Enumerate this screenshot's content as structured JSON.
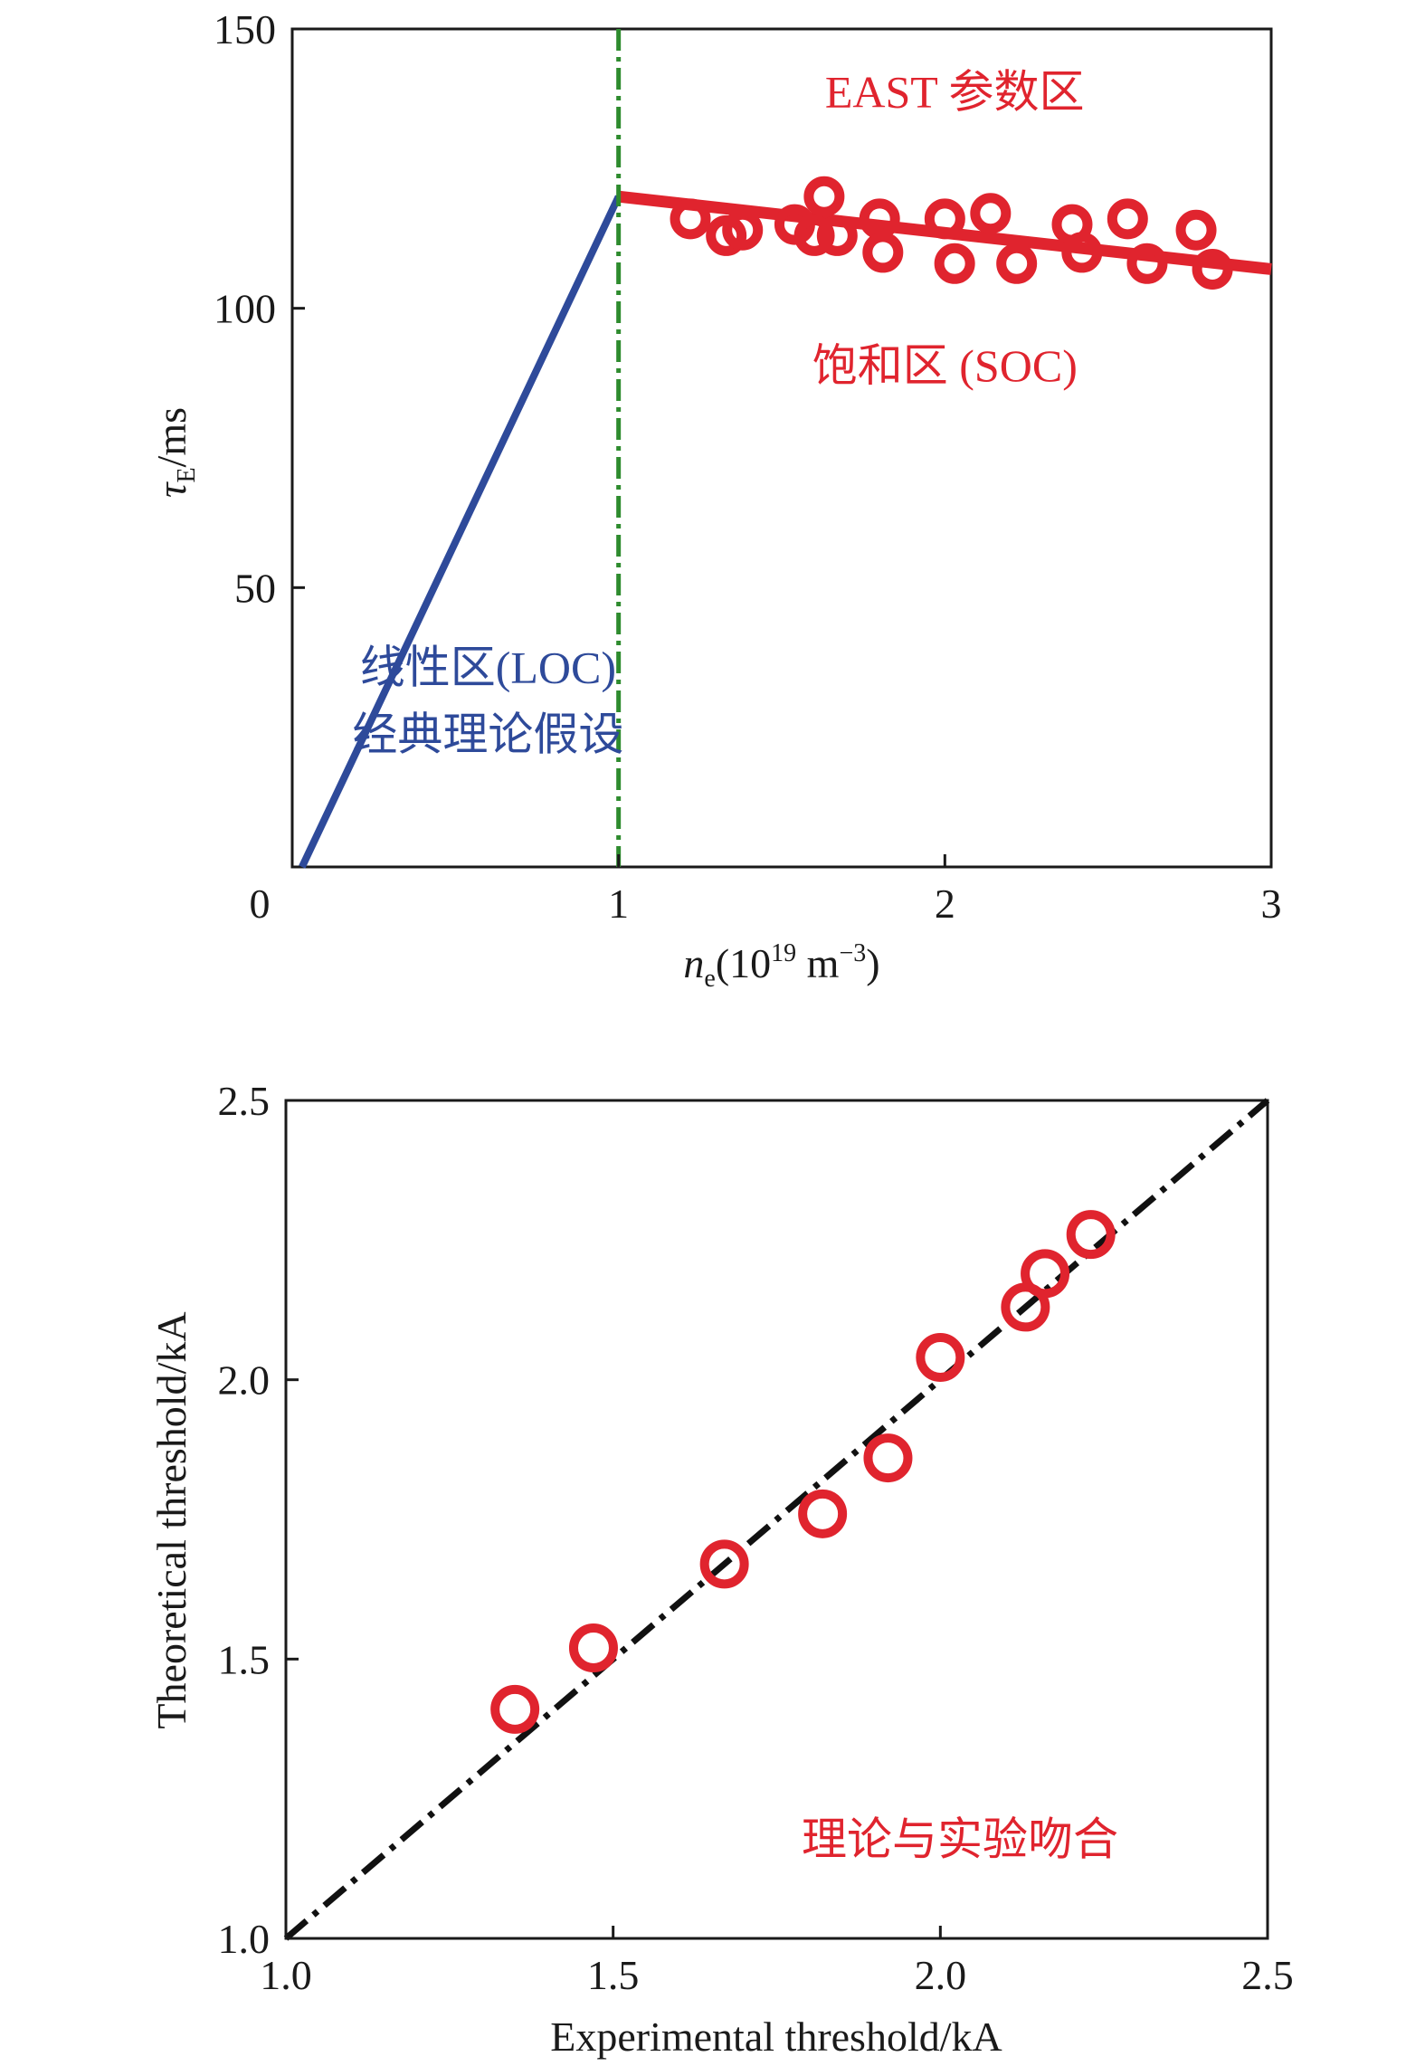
{
  "chart_data": [
    {
      "type": "line",
      "xlabel": {
        "var": "n",
        "sub": "e",
        "unit": "(10",
        "exp": "19",
        "unit2": " m",
        "exp2": "−3",
        "unit3": ")"
      },
      "ylabel": {
        "var": "τ",
        "sub": "E",
        "unit": "/ms"
      },
      "xlim": [
        0,
        3
      ],
      "ylim": [
        0,
        150
      ],
      "xticks": [
        {
          "v": 0,
          "label": "0"
        },
        {
          "v": 1,
          "label": "1"
        },
        {
          "v": 2,
          "label": "2"
        },
        {
          "v": 3,
          "label": "3"
        }
      ],
      "yticks": [
        {
          "v": 50,
          "label": "50"
        },
        {
          "v": 100,
          "label": "100"
        },
        {
          "v": 150,
          "label": "150"
        }
      ],
      "zero_label": "0",
      "grid": false,
      "series": [
        {
          "kind": "line",
          "color": "#2e4a9a",
          "points": [
            [
              0.03,
              0
            ],
            [
              1.0,
              120
            ]
          ]
        },
        {
          "kind": "line",
          "color": "#e0242e",
          "points": [
            [
              1.0,
              120
            ],
            [
              3.0,
              107
            ]
          ]
        },
        {
          "kind": "scatter",
          "color": "#e0242e",
          "points": [
            [
              1.22,
              116
            ],
            [
              1.33,
              113
            ],
            [
              1.38,
              114
            ],
            [
              1.54,
              115
            ],
            [
              1.6,
              113
            ],
            [
              1.63,
              120
            ],
            [
              1.67,
              113
            ],
            [
              1.8,
              116
            ],
            [
              1.81,
              110
            ],
            [
              2.0,
              116
            ],
            [
              2.03,
              108
            ],
            [
              2.14,
              117
            ],
            [
              2.22,
              108
            ],
            [
              2.39,
              115
            ],
            [
              2.42,
              110
            ],
            [
              2.56,
              116
            ],
            [
              2.62,
              108
            ],
            [
              2.77,
              114
            ],
            [
              2.82,
              107
            ]
          ]
        },
        {
          "kind": "vline",
          "color": "#2e8b2e",
          "x": 1.0
        }
      ],
      "annotations": [
        {
          "text": "EAST 参数区",
          "x": 2.03,
          "y": 136,
          "color": "#e0242e"
        },
        {
          "text": "饱和区 (SOC)",
          "x": 2.0,
          "y": 87,
          "color": "#e0242e"
        },
        {
          "text": "线性区(LOC)",
          "x": 0.6,
          "y": 33,
          "color": "#2e4a9a"
        },
        {
          "text": "经典理论假设",
          "x": 0.6,
          "y": 21,
          "color": "#2e4a9a"
        }
      ]
    },
    {
      "type": "scatter",
      "xlabel": "Experimental threshold/kA",
      "ylabel": "Theoretical threshold/kA",
      "xlim": [
        1.0,
        2.5
      ],
      "ylim": [
        1.0,
        2.5
      ],
      "xticks": [
        {
          "v": 1.0,
          "label": "1.0"
        },
        {
          "v": 1.5,
          "label": "1.5"
        },
        {
          "v": 2.0,
          "label": "2.0"
        },
        {
          "v": 2.5,
          "label": "2.5"
        }
      ],
      "yticks": [
        {
          "v": 1.0,
          "label": "1.0"
        },
        {
          "v": 1.5,
          "label": "1.5"
        },
        {
          "v": 2.0,
          "label": "2.0"
        },
        {
          "v": 2.5,
          "label": "2.5"
        }
      ],
      "grid": false,
      "series": [
        {
          "kind": "dashline",
          "color": "#111111",
          "points": [
            [
              1.0,
              1.0
            ],
            [
              2.5,
              2.5
            ]
          ]
        },
        {
          "kind": "scatter",
          "color": "#e0242e",
          "points": [
            [
              1.35,
              1.41
            ],
            [
              1.47,
              1.52
            ],
            [
              1.67,
              1.67
            ],
            [
              1.82,
              1.76
            ],
            [
              1.92,
              1.86
            ],
            [
              2.0,
              2.04
            ],
            [
              2.13,
              2.13
            ],
            [
              2.16,
              2.19
            ],
            [
              2.23,
              2.26
            ]
          ]
        }
      ],
      "annotations": [
        {
          "text": "理论与实验吻合",
          "x": 2.03,
          "y": 1.15,
          "color": "#e0242e"
        }
      ]
    }
  ]
}
